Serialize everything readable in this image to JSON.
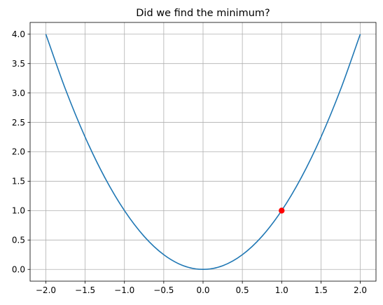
{
  "chart_data": {
    "type": "line",
    "title": "Did we find the minimum?",
    "xlabel": "",
    "ylabel": "",
    "xlim": [
      -2.2,
      2.2
    ],
    "ylim": [
      -0.2,
      4.2
    ],
    "x_ticks": [
      -2.0,
      -1.5,
      -1.0,
      -0.5,
      0.0,
      0.5,
      1.0,
      1.5,
      2.0
    ],
    "x_tick_labels": [
      "−2.0",
      "−1.5",
      "−1.0",
      "−0.5",
      "0.0",
      "0.5",
      "1.0",
      "1.5",
      "2.0"
    ],
    "y_ticks": [
      0.0,
      0.5,
      1.0,
      1.5,
      2.0,
      2.5,
      3.0,
      3.5,
      4.0
    ],
    "y_tick_labels": [
      "0.0",
      "0.5",
      "1.0",
      "1.5",
      "2.0",
      "2.5",
      "3.0",
      "3.5",
      "4.0"
    ],
    "grid": true,
    "legend": "none",
    "series": [
      {
        "kind": "line",
        "color": "#1f77b4",
        "x": [
          -2.0,
          -1.75,
          -1.5,
          -1.25,
          -1.0,
          -0.75,
          -0.5,
          -0.25,
          0.0,
          0.25,
          0.5,
          0.75,
          1.0,
          1.25,
          1.5,
          1.75,
          2.0
        ],
        "y": [
          4.0,
          3.0625,
          2.25,
          1.5625,
          1.0,
          0.5625,
          0.25,
          0.0625,
          0.0,
          0.0625,
          0.25,
          0.5625,
          1.0,
          1.5625,
          2.25,
          3.0625,
          4.0
        ]
      },
      {
        "kind": "point",
        "color": "#ff0000",
        "x": [
          1.0
        ],
        "y": [
          1.0
        ]
      }
    ]
  }
}
